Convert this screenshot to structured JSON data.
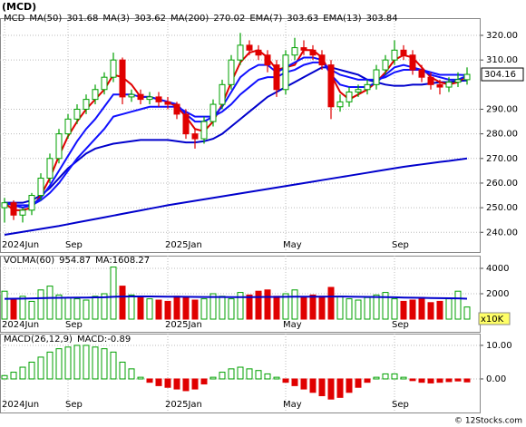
{
  "chart_data": [
    {
      "type": "candlestick",
      "title": "(MCD)",
      "symbol": "MCD",
      "categories": [
        "2024Jun",
        null,
        null,
        null,
        null,
        null,
        null,
        "Sep",
        null,
        null,
        null,
        null,
        null,
        null,
        null,
        null,
        null,
        null,
        "2025Jan",
        null,
        null,
        null,
        null,
        null,
        null,
        null,
        null,
        null,
        null,
        null,
        null,
        "May",
        null,
        null,
        null,
        null,
        null,
        null,
        null,
        null,
        null,
        null,
        null,
        "Sep",
        null,
        null,
        null,
        null,
        null,
        null,
        null,
        null
      ],
      "open": [
        250,
        252,
        247,
        249,
        255,
        262,
        270,
        280,
        286,
        290,
        294,
        298,
        303,
        310,
        295,
        296,
        294,
        295,
        293,
        292,
        288,
        280,
        278,
        285,
        292,
        300,
        310,
        316,
        314,
        312,
        308,
        298,
        312,
        315,
        314,
        312,
        308,
        291,
        293,
        297,
        298,
        300,
        306,
        310,
        314,
        312,
        306,
        303,
        300,
        299,
        301,
        302
      ],
      "high": [
        254,
        253,
        250,
        256,
        264,
        272,
        282,
        288,
        292,
        296,
        300,
        305,
        313,
        311,
        298,
        298,
        297,
        297,
        295,
        293,
        290,
        282,
        287,
        294,
        302,
        312,
        321,
        318,
        316,
        314,
        310,
        314,
        319,
        318,
        316,
        314,
        310,
        296,
        299,
        300,
        302,
        308,
        312,
        318,
        316,
        314,
        308,
        305,
        302,
        303,
        305,
        307
      ],
      "low": [
        244,
        245,
        244,
        247,
        253,
        260,
        268,
        278,
        284,
        288,
        292,
        296,
        301,
        292,
        293,
        292,
        292,
        291,
        290,
        286,
        278,
        274,
        276,
        283,
        290,
        298,
        308,
        312,
        310,
        305,
        295,
        296,
        310,
        312,
        310,
        306,
        286,
        289,
        291,
        295,
        296,
        298,
        304,
        308,
        310,
        304,
        301,
        298,
        296,
        297,
        299,
        300
      ],
      "close": [
        252,
        247,
        249,
        255,
        262,
        270,
        280,
        286,
        290,
        294,
        298,
        303,
        310,
        295,
        296,
        294,
        295,
        293,
        292,
        288,
        280,
        278,
        285,
        292,
        300,
        310,
        316,
        314,
        312,
        308,
        298,
        312,
        315,
        314,
        312,
        308,
        291,
        293,
        297,
        298,
        300,
        306,
        310,
        314,
        312,
        306,
        303,
        300,
        299,
        301,
        302,
        304.16
      ],
      "up_color": "#00a000",
      "down_color": "#e00000",
      "series": [
        {
          "name": "MA(50)",
          "color": "#0000cc",
          "values": [
            252,
            252,
            252,
            253,
            255,
            258,
            262,
            266,
            269,
            272,
            274,
            275,
            276,
            276.5,
            277,
            277.5,
            277.5,
            277.5,
            277.5,
            277,
            276.5,
            276.5,
            277,
            278,
            280,
            283,
            286,
            289,
            292,
            295,
            297,
            299,
            301,
            303,
            305,
            307,
            307,
            306,
            305,
            304,
            302,
            301,
            300,
            299.5,
            299.5,
            300,
            300,
            300.5,
            301,
            301,
            301.5,
            301.68
          ]
        },
        {
          "name": "MA(3)",
          "color": "#e00000",
          "values": [
            252,
            249,
            249,
            250,
            255,
            262,
            271,
            279,
            285,
            290,
            294,
            298,
            304,
            303,
            300,
            295,
            295,
            294,
            293,
            291,
            287,
            282,
            281,
            285,
            292,
            301,
            309,
            313,
            314,
            311,
            306,
            307,
            308,
            314,
            314,
            311,
            304,
            297,
            294,
            296,
            298,
            301,
            305,
            310,
            312,
            311,
            307,
            303,
            301,
            300,
            301,
            303.62
          ]
        },
        {
          "name": "MA(200)",
          "color": "#0000cc",
          "values": [
            239,
            239.6,
            240.2,
            240.8,
            241.4,
            242,
            242.6,
            243.3,
            244,
            244.7,
            245.4,
            246.1,
            246.8,
            247.5,
            248.2,
            248.9,
            249.6,
            250.3,
            251,
            251.6,
            252.2,
            252.8,
            253.4,
            254,
            254.6,
            255.2,
            255.8,
            256.4,
            257,
            257.6,
            258.2,
            258.8,
            259.4,
            260,
            260.6,
            261.2,
            261.8,
            262.4,
            263,
            263.6,
            264.2,
            264.8,
            265.4,
            266,
            266.6,
            267.1,
            267.6,
            268.1,
            268.6,
            269,
            269.5,
            270.02
          ]
        },
        {
          "name": "EMA(7)",
          "color": "#1010ff",
          "values": [
            252,
            251,
            250,
            251,
            254,
            259,
            265,
            271,
            277,
            282,
            286,
            291,
            296,
            296,
            296,
            295,
            295,
            294,
            293,
            292,
            288,
            285,
            285,
            287,
            291,
            297,
            303,
            306,
            308,
            308,
            305,
            307,
            309,
            311,
            311,
            310,
            304,
            300,
            299,
            299,
            299,
            301,
            304,
            307,
            308,
            307,
            306,
            304,
            303,
            302,
            302,
            303.63
          ]
        },
        {
          "name": "EMA(13)",
          "color": "#1010ff",
          "values": [
            252,
            251,
            251,
            251,
            253,
            256,
            260,
            265,
            270,
            274,
            278,
            282,
            287,
            288,
            289,
            290,
            291,
            291,
            291,
            291,
            289,
            287,
            287,
            287,
            289,
            292,
            296,
            299,
            302,
            303,
            303,
            305,
            306,
            308,
            309,
            309,
            306,
            304,
            303,
            302,
            302,
            302,
            303,
            305,
            306,
            306,
            306,
            305,
            304,
            304,
            304,
            303.84
          ]
        }
      ],
      "ylim": [
        232,
        327
      ],
      "yticks": [
        {
          "value": 240,
          "label": "240.00"
        },
        {
          "value": 250,
          "label": "250.00"
        },
        {
          "value": 260,
          "label": "260.00"
        },
        {
          "value": 270,
          "label": "270.00"
        },
        {
          "value": 280,
          "label": "280.00"
        },
        {
          "value": 290,
          "label": "290.00"
        },
        {
          "value": 310,
          "label": "310.00"
        },
        {
          "value": 320,
          "label": "320.00"
        }
      ],
      "grid": true
    },
    {
      "type": "volume",
      "title": "VOLMA(60)",
      "unit": "x10K",
      "ma_label": "MA:",
      "values": [
        2200,
        1500,
        1800,
        1400,
        2300,
        2600,
        1900,
        1700,
        1600,
        1500,
        1800,
        2000,
        4100,
        2600,
        1900,
        1700,
        1600,
        1500,
        1400,
        1800,
        1700,
        1500,
        1600,
        2000,
        1800,
        1600,
        2100,
        1900,
        2200,
        2300,
        1800,
        2000,
        2300,
        1700,
        1900,
        1800,
        2500,
        1800,
        1600,
        1500,
        1700,
        1900,
        2100,
        1600,
        1400,
        1500,
        1700,
        1300,
        1400,
        1600,
        2200,
        954.87
      ],
      "series": [
        {
          "name": "MA",
          "color": "#0000cc",
          "values": [
            1600,
            1610,
            1620,
            1630,
            1650,
            1670,
            1680,
            1690,
            1700,
            1700,
            1710,
            1720,
            1760,
            1780,
            1790,
            1790,
            1790,
            1780,
            1770,
            1770,
            1760,
            1750,
            1740,
            1740,
            1740,
            1730,
            1730,
            1730,
            1740,
            1750,
            1750,
            1760,
            1770,
            1770,
            1770,
            1770,
            1780,
            1780,
            1770,
            1760,
            1750,
            1740,
            1730,
            1720,
            1700,
            1690,
            1680,
            1660,
            1650,
            1640,
            1630,
            1608.27
          ]
        }
      ],
      "ylim": [
        0,
        5000
      ],
      "yticks": [
        2000,
        4000
      ],
      "grid": true
    },
    {
      "type": "macd",
      "title": "MACD(26,12,9)",
      "value_label": "MACD:",
      "values": [
        1,
        2,
        3.5,
        5,
        6.5,
        8,
        9,
        9.5,
        10,
        10,
        9.5,
        9,
        8,
        5,
        3,
        0.5,
        -1,
        -2,
        -2.5,
        -3,
        -3.5,
        -3,
        -1.5,
        0.5,
        2,
        3,
        3.5,
        3,
        2.5,
        1.5,
        0.5,
        -1,
        -2,
        -3,
        -4,
        -5,
        -6,
        -5.5,
        -4,
        -2.5,
        -1,
        0.5,
        1.5,
        1.5,
        0.5,
        -0.5,
        -1,
        -1.2,
        -1,
        -0.8,
        -0.6,
        -0.89
      ],
      "up_color": "#00a000",
      "down_color": "#e00000",
      "ylim": [
        -10,
        13.5
      ],
      "yticks": [
        {
          "value": 0,
          "label": "0.00"
        },
        {
          "value": 10,
          "label": "10.00"
        }
      ],
      "grid": true
    }
  ],
  "footer": "© 12Stocks.com"
}
